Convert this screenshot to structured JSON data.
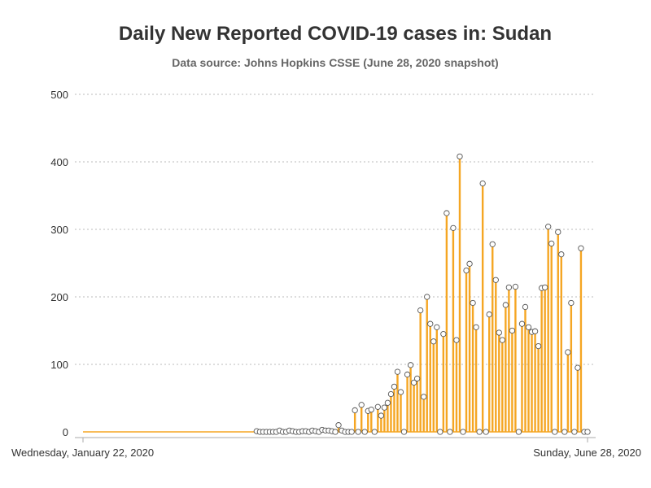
{
  "header": {
    "title": "Daily New Reported COVID-19 cases in: Sudan",
    "subtitle": "Data source: Johns Hopkins CSSE (June 28, 2020 snapshot)"
  },
  "chart_data": {
    "type": "bar",
    "title": "Daily New Reported COVID-19 cases in: Sudan",
    "subtitle": "Data source: Johns Hopkins CSSE (June 28, 2020 snapshot)",
    "xlabel": "",
    "ylabel": "",
    "x_start": "2020-01-22",
    "x_end": "2020-06-28",
    "x_tick_labels": [
      "Wednesday, January 22, 2020",
      "Sunday, June 28, 2020"
    ],
    "ylim": [
      0,
      500
    ],
    "y_ticks": [
      0,
      100,
      200,
      300,
      400,
      500
    ],
    "grid": true,
    "bar_color": "#f5a623",
    "marker_fill": "#ffffff",
    "marker_stroke": "#555555",
    "values": [
      0,
      0,
      0,
      0,
      0,
      0,
      0,
      0,
      0,
      0,
      0,
      0,
      0,
      0,
      0,
      0,
      0,
      0,
      0,
      0,
      0,
      0,
      0,
      0,
      0,
      0,
      0,
      0,
      0,
      0,
      0,
      0,
      0,
      0,
      0,
      0,
      0,
      0,
      0,
      0,
      0,
      0,
      0,
      0,
      0,
      0,
      0,
      0,
      0,
      0,
      0,
      0,
      0,
      1,
      0,
      0,
      0,
      0,
      0,
      0,
      2,
      0,
      0,
      2,
      1,
      0,
      0,
      1,
      1,
      0,
      2,
      1,
      0,
      3,
      2,
      2,
      1,
      0,
      10,
      2,
      0,
      0,
      0,
      32,
      0,
      40,
      0,
      31,
      33,
      0,
      37,
      24,
      36,
      43,
      56,
      67,
      89,
      59,
      0,
      85,
      99,
      73,
      79,
      180,
      52,
      200,
      160,
      134,
      155,
      0,
      145,
      324,
      0,
      302,
      136,
      408,
      0,
      239,
      249,
      191,
      155,
      0,
      368,
      0,
      174,
      278,
      225,
      147,
      136,
      188,
      214,
      150,
      215,
      0,
      160,
      185,
      155,
      148,
      149,
      127,
      213,
      214,
      304,
      279,
      0,
      296,
      263,
      0,
      118,
      191,
      0,
      95,
      272,
      0,
      0
    ]
  }
}
